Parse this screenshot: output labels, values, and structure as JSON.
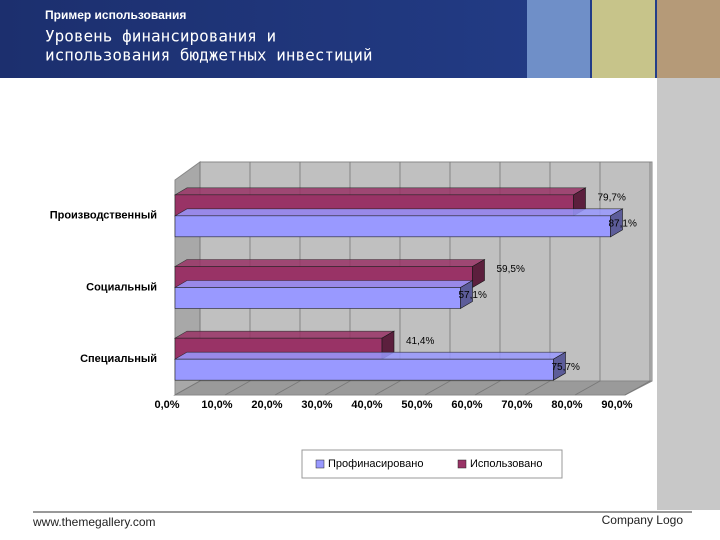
{
  "slide": {
    "kicker": "Пример использования",
    "title_lines": [
      "Уровень финансирования и",
      "использования  бюджетных инвестиций"
    ],
    "footer_url": "www.themegallery.com",
    "footer_logo": "Company Logo"
  },
  "chart_data": {
    "type": "hbar3d",
    "categories": [
      "Производственный",
      "Социальный",
      "Специальный"
    ],
    "series": [
      {
        "name": "Профинасировано",
        "color": "#9999ff",
        "values": [
          87.1,
          57.1,
          75.7
        ],
        "value_labels": [
          "87,1%",
          "57,1%",
          "75,7%"
        ]
      },
      {
        "name": "Использовано",
        "color": "#993366",
        "values": [
          79.7,
          59.5,
          41.4
        ],
        "value_labels": [
          "79,7%",
          "59,5%",
          "41,4%"
        ]
      }
    ],
    "xlim": [
      0,
      90
    ],
    "xticks": [
      {
        "value": 0,
        "label": "0,0%"
      },
      {
        "value": 10,
        "label": "10,0%"
      },
      {
        "value": 20,
        "label": "20,0%"
      },
      {
        "value": 30,
        "label": "30,0%"
      },
      {
        "value": 40,
        "label": "40,0%"
      },
      {
        "value": 50,
        "label": "50,0%"
      },
      {
        "value": 60,
        "label": "60,0%"
      },
      {
        "value": 70,
        "label": "70,0%"
      },
      {
        "value": 80,
        "label": "80,0%"
      },
      {
        "value": 90,
        "label": "90,0%"
      }
    ],
    "grid": true,
    "legend": "bottom"
  }
}
